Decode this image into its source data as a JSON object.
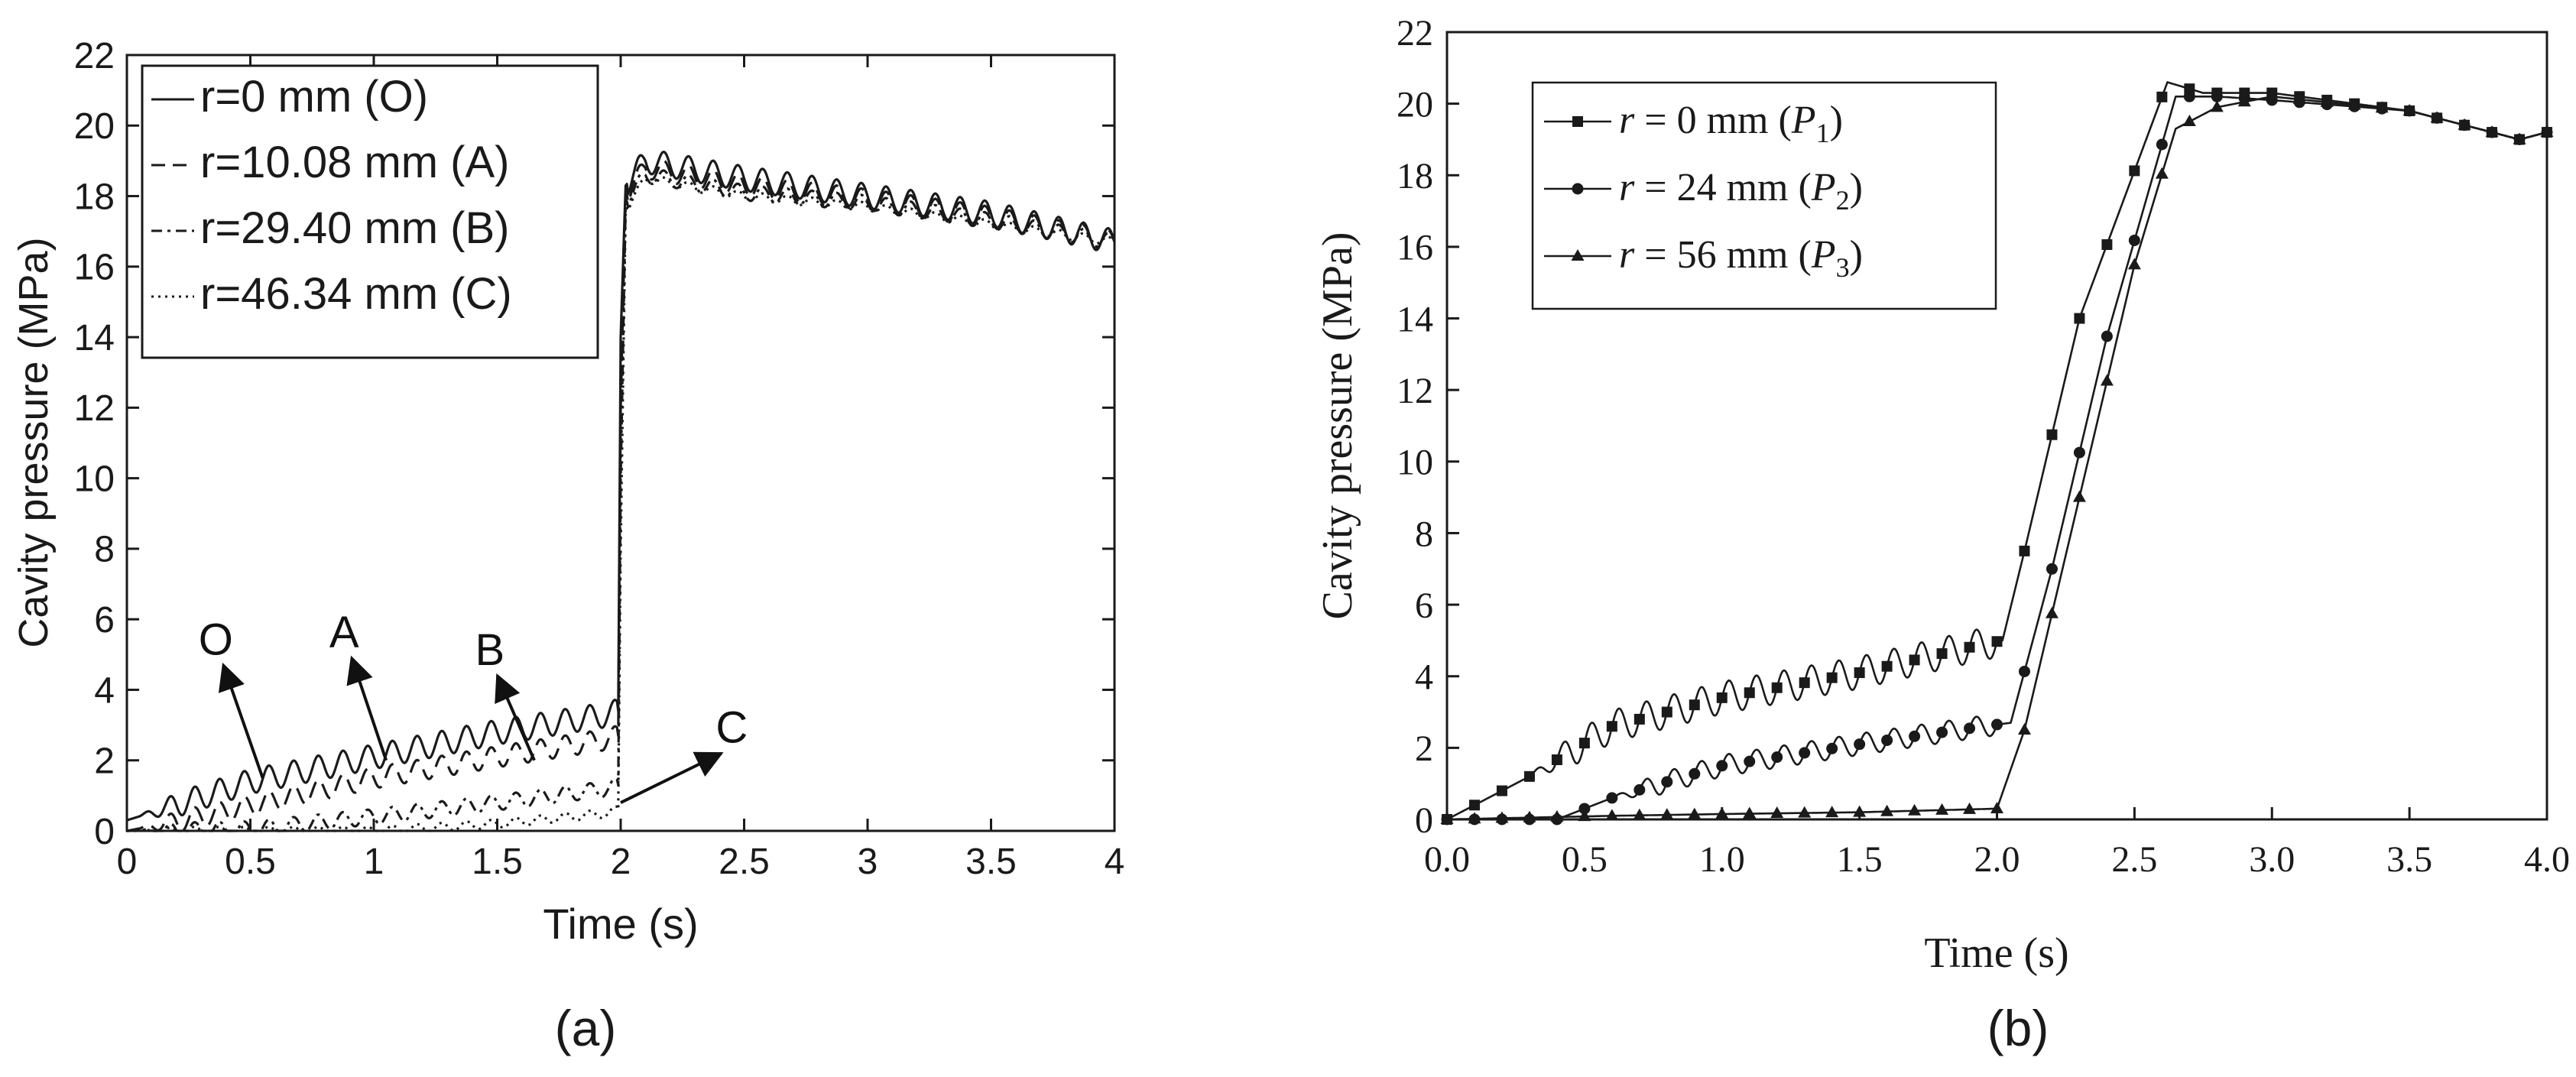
{
  "chart_data": [
    {
      "type": "line",
      "panel_label": "(a)",
      "title": "",
      "xlabel": "Time (s)",
      "ylabel": "Cavity pressure (MPa)",
      "xlim": [
        0,
        4
      ],
      "ylim": [
        0,
        22
      ],
      "xticks": [
        0,
        0.5,
        1,
        1.5,
        2,
        2.5,
        3,
        3.5,
        4
      ],
      "xtick_labels": [
        "0",
        "0.5",
        "1",
        "1.5",
        "2",
        "2.5",
        "3",
        "3.5",
        "4"
      ],
      "yticks": [
        0,
        2,
        4,
        6,
        8,
        10,
        12,
        14,
        16,
        18,
        20,
        22
      ],
      "ytick_labels": [
        "0",
        "2",
        "4",
        "6",
        "8",
        "10",
        "12",
        "14",
        "16",
        "18",
        "20",
        "22"
      ],
      "legend_position": "top-left",
      "series": [
        {
          "name": "r=0 mm (O)",
          "style": "solid",
          "color": "#1a1a1a",
          "x": [
            0,
            0.5,
            1.0,
            1.5,
            1.95,
            1.99,
            2.0,
            2.02,
            2.1,
            2.5,
            3.0,
            3.5,
            4.0
          ],
          "y": [
            0.3,
            1.4,
            2.1,
            2.8,
            3.3,
            3.4,
            14.0,
            18.3,
            19.0,
            18.5,
            18.0,
            17.5,
            16.7
          ],
          "osc_amp": 0.35,
          "osc_period": 0.1
        },
        {
          "name": "r=10.08 mm (A)",
          "style": "dashed",
          "color": "#1a1a1a",
          "x": [
            0,
            0.3,
            1.0,
            1.5,
            1.95,
            1.99,
            2.0,
            2.02,
            2.1,
            2.5,
            3.0,
            3.5,
            4.0
          ],
          "y": [
            0,
            0.4,
            1.5,
            2.1,
            2.6,
            2.7,
            12.0,
            18.0,
            18.8,
            18.3,
            17.9,
            17.4,
            16.7
          ],
          "osc_amp": 0.3,
          "osc_period": 0.1
        },
        {
          "name": "r=29.40 mm (B)",
          "style": "dashdot",
          "color": "#1a1a1a",
          "x": [
            0,
            0.5,
            1.0,
            1.5,
            1.95,
            1.99,
            2.0,
            2.02,
            2.1,
            2.5,
            3.0,
            3.5,
            4.0
          ],
          "y": [
            0,
            0.05,
            0.4,
            0.8,
            1.2,
            1.3,
            10.0,
            17.8,
            18.6,
            18.1,
            17.8,
            17.3,
            16.7
          ],
          "osc_amp": 0.22,
          "osc_period": 0.1
        },
        {
          "name": "r=46.34 mm (C)",
          "style": "dotted",
          "color": "#1a1a1a",
          "x": [
            0,
            1.0,
            1.5,
            1.95,
            1.99,
            2.0,
            2.02,
            2.1,
            2.5,
            3.0,
            3.5,
            4.0
          ],
          "y": [
            0,
            0,
            0.2,
            0.5,
            0.6,
            8.0,
            17.6,
            18.5,
            18.0,
            17.7,
            17.2,
            16.7
          ],
          "osc_amp": 0.12,
          "osc_period": 0.1
        }
      ],
      "annotations": [
        {
          "text": "O",
          "x": 0.36,
          "y": 5.0,
          "arrow_to": [
            0.55,
            1.5
          ]
        },
        {
          "text": "A",
          "x": 0.88,
          "y": 5.2,
          "arrow_to": [
            1.05,
            2.0
          ]
        },
        {
          "text": "B",
          "x": 1.47,
          "y": 4.7,
          "arrow_to": [
            1.65,
            2.0
          ]
        },
        {
          "text": "C",
          "x": 2.45,
          "y": 2.5,
          "arrow_to": [
            2.0,
            0.8
          ]
        }
      ]
    },
    {
      "type": "line",
      "panel_label": "(b)",
      "title": "",
      "xlabel": "Time (s)",
      "ylabel": "Cavity pressure (MPa)",
      "xlim": [
        0,
        4
      ],
      "ylim": [
        0,
        22
      ],
      "xticks": [
        0,
        0.5,
        1,
        1.5,
        2,
        2.5,
        3,
        3.5,
        4
      ],
      "xtick_labels": [
        "0.0",
        "0.5",
        "1.0",
        "1.5",
        "2.0",
        "2.5",
        "3.0",
        "3.5",
        "4.0"
      ],
      "yticks": [
        0,
        2,
        4,
        6,
        8,
        10,
        12,
        14,
        16,
        18,
        20,
        22
      ],
      "ytick_labels": [
        "0",
        "2",
        "4",
        "6",
        "8",
        "10",
        "12",
        "14",
        "16",
        "18",
        "20",
        "22"
      ],
      "legend_position": "top-left",
      "series": [
        {
          "name": "r = 0 mm (P1)",
          "legend_r": "r",
          "legend_mid": " = 0 mm (",
          "legend_var": "P",
          "legend_sub": "1",
          "legend_close": ")",
          "marker": "square",
          "color": "#1a1a1a",
          "x": [
            0,
            0.3,
            0.6,
            1.0,
            1.5,
            1.95,
            2.02,
            2.1,
            2.3,
            2.62,
            2.75,
            3.0,
            3.5,
            3.9,
            4.0
          ],
          "y": [
            0,
            1.2,
            2.6,
            3.4,
            4.1,
            4.9,
            5.0,
            7.5,
            14.0,
            20.6,
            20.3,
            20.3,
            19.8,
            19.0,
            19.2
          ],
          "osc_amp": 0.45,
          "osc_period": 0.1,
          "osc_from": 0.3,
          "osc_to": 2.0
        },
        {
          "name": "r = 24 mm (P2)",
          "legend_r": "r",
          "legend_mid": " = 24 mm (",
          "legend_var": "P",
          "legend_sub": "2",
          "legend_close": ")",
          "marker": "circle",
          "color": "#1a1a1a",
          "x": [
            0,
            0.4,
            0.6,
            1.0,
            1.5,
            1.95,
            2.05,
            2.2,
            2.4,
            2.65,
            2.8,
            3.0,
            3.5,
            3.9,
            4.0
          ],
          "y": [
            0,
            0,
            0.6,
            1.5,
            2.1,
            2.6,
            2.7,
            7.0,
            13.5,
            20.2,
            20.2,
            20.1,
            19.8,
            19.0,
            19.2
          ],
          "osc_amp": 0.3,
          "osc_period": 0.1,
          "osc_from": 0.6,
          "osc_to": 2.0
        },
        {
          "name": "r = 56 mm (P3)",
          "legend_r": "r",
          "legend_mid": " = 56 mm (",
          "legend_var": "P",
          "legend_sub": "3",
          "legend_close": ")",
          "marker": "triangle",
          "color": "#1a1a1a",
          "x": [
            0,
            0.6,
            1.0,
            1.5,
            2.0,
            2.1,
            2.3,
            2.5,
            2.65,
            2.8,
            3.0,
            3.5,
            3.9,
            4.0
          ],
          "y": [
            0,
            0.1,
            0.15,
            0.2,
            0.3,
            2.5,
            9.0,
            15.5,
            19.3,
            19.9,
            20.2,
            19.8,
            19.0,
            19.2
          ],
          "osc_amp": 0.0,
          "osc_period": 0.1,
          "osc_from": 0,
          "osc_to": 0
        }
      ],
      "annotations": []
    }
  ]
}
